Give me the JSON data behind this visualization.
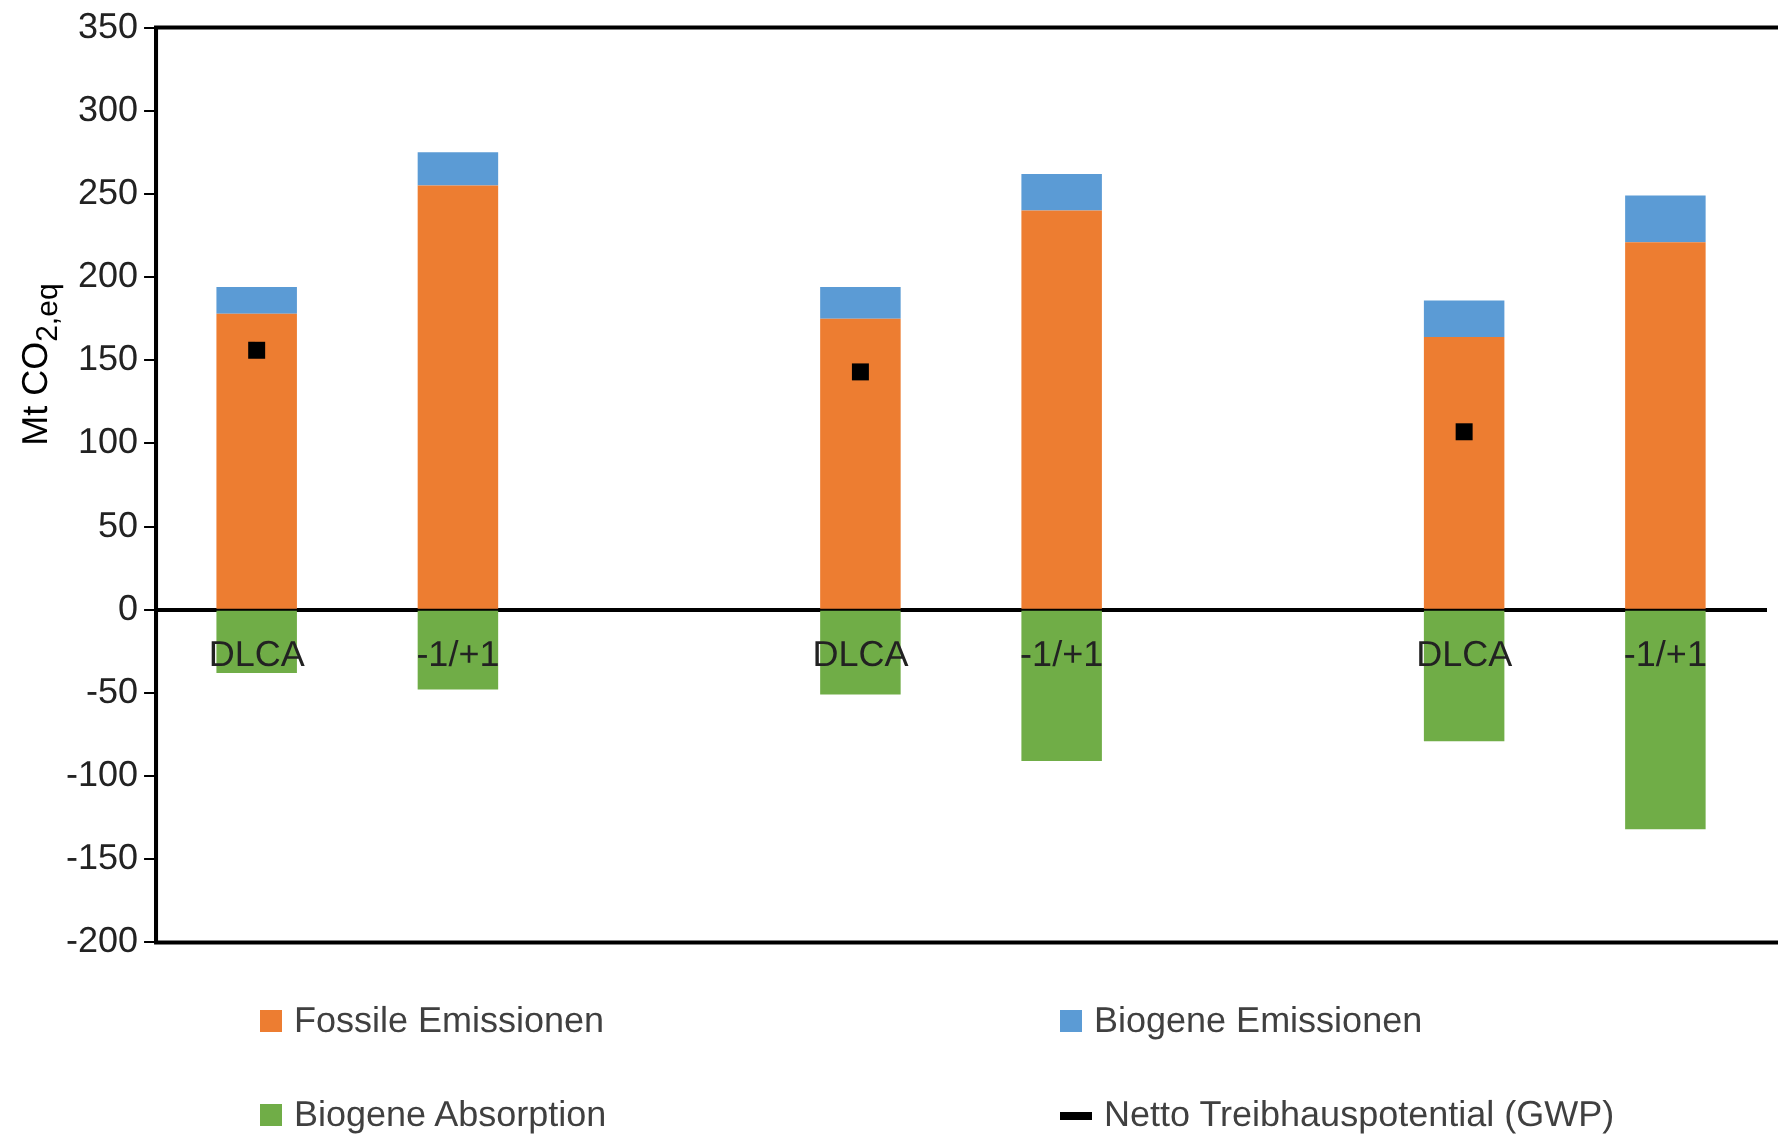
{
  "chart_data": {
    "type": "bar",
    "stacked": true,
    "ylabel": "Mt CO$_{2,eq}$",
    "categories": [
      "DLCA",
      "-1/+1",
      null,
      "DLCA",
      "-1/+1",
      null,
      "DLCA",
      "-1/+1"
    ],
    "series": [
      {
        "name": "Fossile Emissionen",
        "color": "#ed7d31",
        "values": [
          178,
          255,
          null,
          175,
          240,
          null,
          164,
          221
        ]
      },
      {
        "name": "Biogene Emissionen",
        "color": "#5b9bd5",
        "values": [
          16,
          20,
          null,
          19,
          22,
          null,
          22,
          28
        ]
      },
      {
        "name": "Biogene Absorption",
        "color": "#70ad47",
        "values": [
          -38,
          -48,
          null,
          -51,
          -91,
          null,
          -79,
          -132
        ]
      },
      {
        "name": "Netto Treibhauspotential (GWP)",
        "color": "#000000",
        "type": "scatter",
        "values": [
          156,
          null,
          null,
          143,
          null,
          null,
          107,
          null
        ]
      }
    ],
    "ylim": [
      -200,
      350
    ],
    "yticks": [
      -200,
      -150,
      -100,
      -50,
      0,
      50,
      100,
      150,
      200,
      250,
      300,
      350
    ],
    "grid": false,
    "legend": "bottom"
  }
}
